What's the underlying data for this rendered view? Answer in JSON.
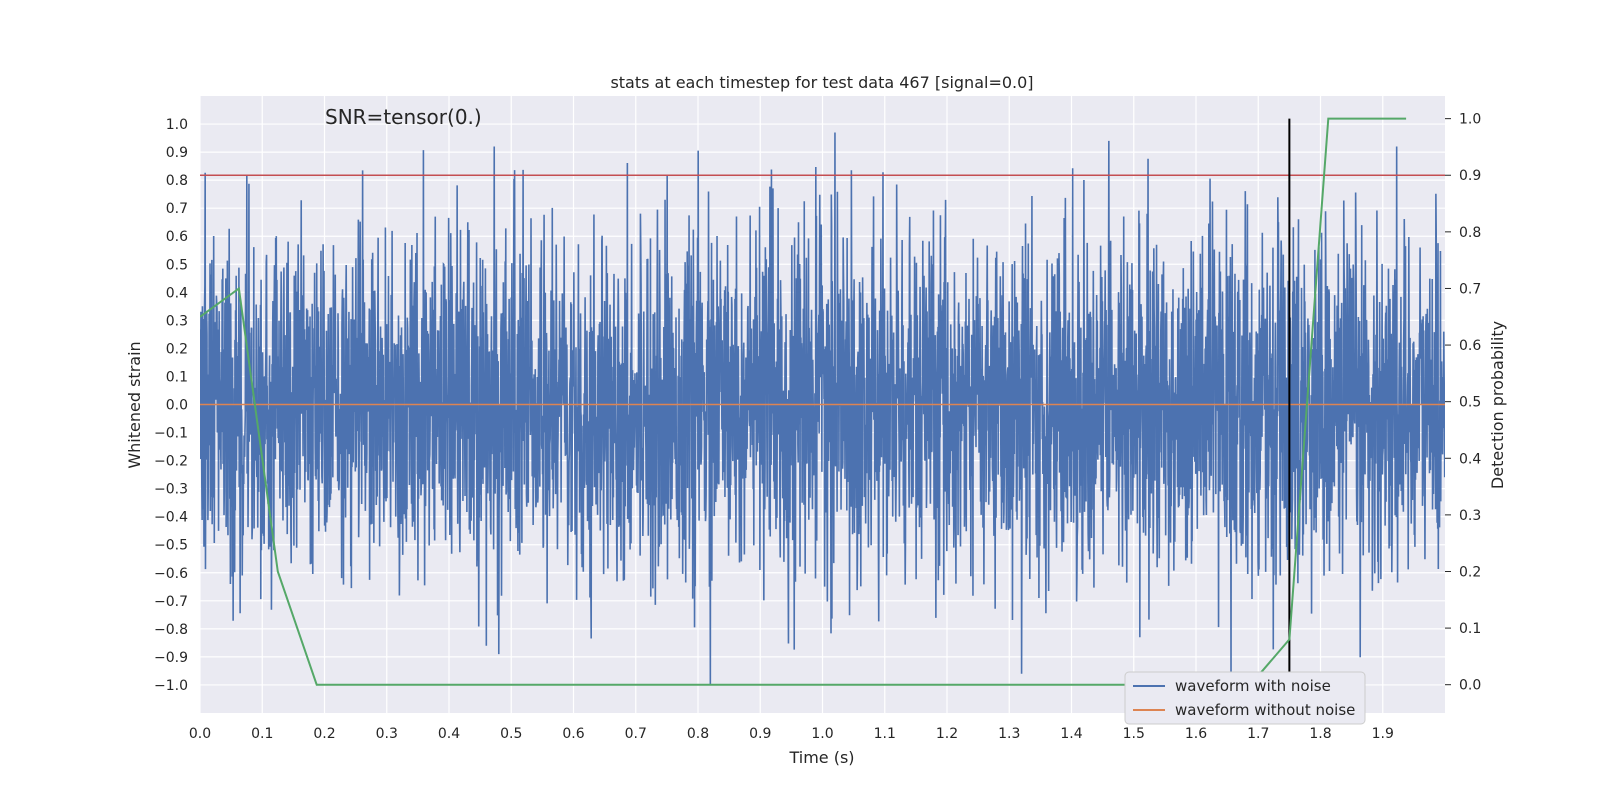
{
  "chart_data": {
    "type": "line",
    "title": "stats at each timestep for test data 467 [signal=0.0]",
    "xlabel": "Time (s)",
    "ylabel": "Whitened strain",
    "y2label": "Detection probability",
    "xlim": [
      0.0,
      2.0
    ],
    "ylim": [
      -1.1,
      1.1
    ],
    "y2lim": [
      -0.05,
      1.04
    ],
    "x_ticks": [
      0.0,
      0.1,
      0.2,
      0.3,
      0.4,
      0.5,
      0.6,
      0.7,
      0.8,
      0.9,
      1.0,
      1.1,
      1.2,
      1.3,
      1.4,
      1.5,
      1.6,
      1.7,
      1.8,
      1.9
    ],
    "y_ticks": [
      -1.0,
      -0.9,
      -0.8,
      -0.7,
      -0.6,
      -0.5,
      -0.4,
      -0.3,
      -0.2,
      -0.1,
      0.0,
      0.1,
      0.2,
      0.3,
      0.4,
      0.5,
      0.6,
      0.7,
      0.8,
      0.9,
      1.0
    ],
    "y2_ticks": [
      0.0,
      0.1,
      0.2,
      0.3,
      0.4,
      0.5,
      0.6,
      0.7,
      0.8,
      0.9,
      1.0
    ],
    "grid": true,
    "annotation": "SNR=tensor(0.)",
    "threshold_line": {
      "axis": "y2",
      "value": 0.9,
      "color": "#c44e52"
    },
    "vertical_marker": {
      "x": 1.75,
      "y2_range": [
        0.0,
        1.0
      ],
      "color": "#000000"
    },
    "series": [
      {
        "name": "waveform with noise",
        "axis": "y",
        "color": "#4c72b0",
        "sample_rate_hz": 2048,
        "amplitude_std": 0.3,
        "peaks": [
          {
            "x": 0.075,
            "y": 0.82
          },
          {
            "x": 1.02,
            "y": 0.97
          },
          {
            "x": 1.46,
            "y": 0.94
          },
          {
            "x": 0.82,
            "y": -1.0
          },
          {
            "x": 1.32,
            "y": -0.96
          },
          {
            "x": 0.48,
            "y": -0.89
          },
          {
            "x": 0.46,
            "y": -0.86
          },
          {
            "x": 1.51,
            "y": -0.83
          }
        ]
      },
      {
        "name": "waveform without noise",
        "axis": "y",
        "color": "#dd8452",
        "values_constant": 0.0
      },
      {
        "name": "detection probability",
        "axis": "y2",
        "color": "#55a868",
        "x": [
          0.0,
          0.0625,
          0.125,
          0.1875,
          0.25,
          0.3125,
          0.375,
          0.4375,
          0.5,
          0.5625,
          0.625,
          0.6875,
          0.75,
          0.8125,
          0.875,
          0.9375,
          1.0,
          1.0625,
          1.125,
          1.1875,
          1.25,
          1.3125,
          1.375,
          1.4375,
          1.5,
          1.5625,
          1.625,
          1.6875,
          1.75,
          1.8125,
          1.875,
          1.9375
        ],
        "y": [
          0.65,
          0.7,
          0.2,
          0.0,
          0.0,
          0.0,
          0.0,
          0.0,
          0.0,
          0.0,
          0.0,
          0.0,
          0.0,
          0.0,
          0.0,
          0.0,
          0.0,
          0.0,
          0.0,
          0.0,
          0.0,
          0.0,
          0.0,
          0.0,
          0.0,
          0.0,
          0.0,
          0.0,
          0.08,
          1.0,
          1.0,
          1.0
        ]
      }
    ],
    "legend": {
      "placement": "lower-right",
      "entries": [
        {
          "label": "waveform with noise",
          "color": "#4c72b0"
        },
        {
          "label": "waveform without noise",
          "color": "#dd8452"
        }
      ]
    }
  }
}
